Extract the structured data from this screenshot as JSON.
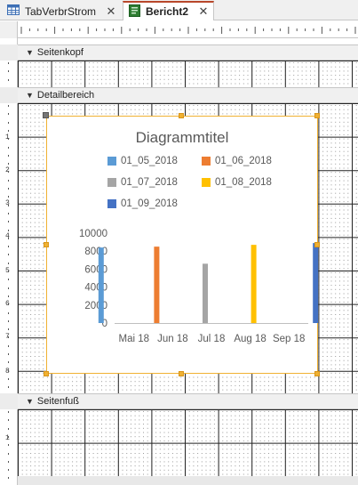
{
  "tabs": [
    {
      "label": "TabVerbrStrom",
      "icon": "table-icon",
      "active": false
    },
    {
      "label": "Bericht2",
      "icon": "report-icon",
      "active": true
    }
  ],
  "sections": {
    "header": "Seitenkopf",
    "detail": "Detailbereich",
    "footer": "Seitenfuß"
  },
  "ruler": {
    "vertical_numbers": [
      "1",
      "2",
      "3",
      "4",
      "5",
      "6",
      "7",
      "8",
      "1"
    ]
  },
  "colors": {
    "selection": "#f0b132",
    "series": [
      "#5b9bd5",
      "#ed7d31",
      "#a5a5a5",
      "#ffc000",
      "#4472c4"
    ]
  },
  "chart_data": {
    "type": "bar",
    "title": "Diagrammtitel",
    "categories": [
      "Mai 18",
      "Jun 18",
      "Jul 18",
      "Aug 18",
      "Sep 18"
    ],
    "series": [
      {
        "name": "01_05_2018",
        "values": [
          8400,
          null,
          null,
          null,
          null
        ]
      },
      {
        "name": "01_06_2018",
        "values": [
          null,
          8500,
          null,
          null,
          null
        ]
      },
      {
        "name": "01_07_2018",
        "values": [
          null,
          null,
          6600,
          null,
          null
        ]
      },
      {
        "name": "01_08_2018",
        "values": [
          null,
          null,
          null,
          8700,
          null
        ]
      },
      {
        "name": "01_09_2018",
        "values": [
          null,
          null,
          null,
          null,
          8900
        ]
      }
    ],
    "y_ticks": [
      "0",
      "2000",
      "4000",
      "6000",
      "8000",
      "10000"
    ],
    "ylim": [
      0,
      10000
    ],
    "legend": "top",
    "grid": false
  }
}
